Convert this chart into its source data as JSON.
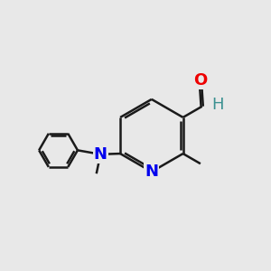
{
  "background_color": "#e8e8e8",
  "bond_color": "#1a1a1a",
  "N_color": "#0000ee",
  "O_color": "#ee0000",
  "H_color": "#3a9090",
  "bond_width": 1.8,
  "font_size_atom": 13,
  "fig_size": [
    3.0,
    3.0
  ],
  "dpi": 100,
  "xlim": [
    0,
    10
  ],
  "ylim": [
    0,
    10
  ]
}
